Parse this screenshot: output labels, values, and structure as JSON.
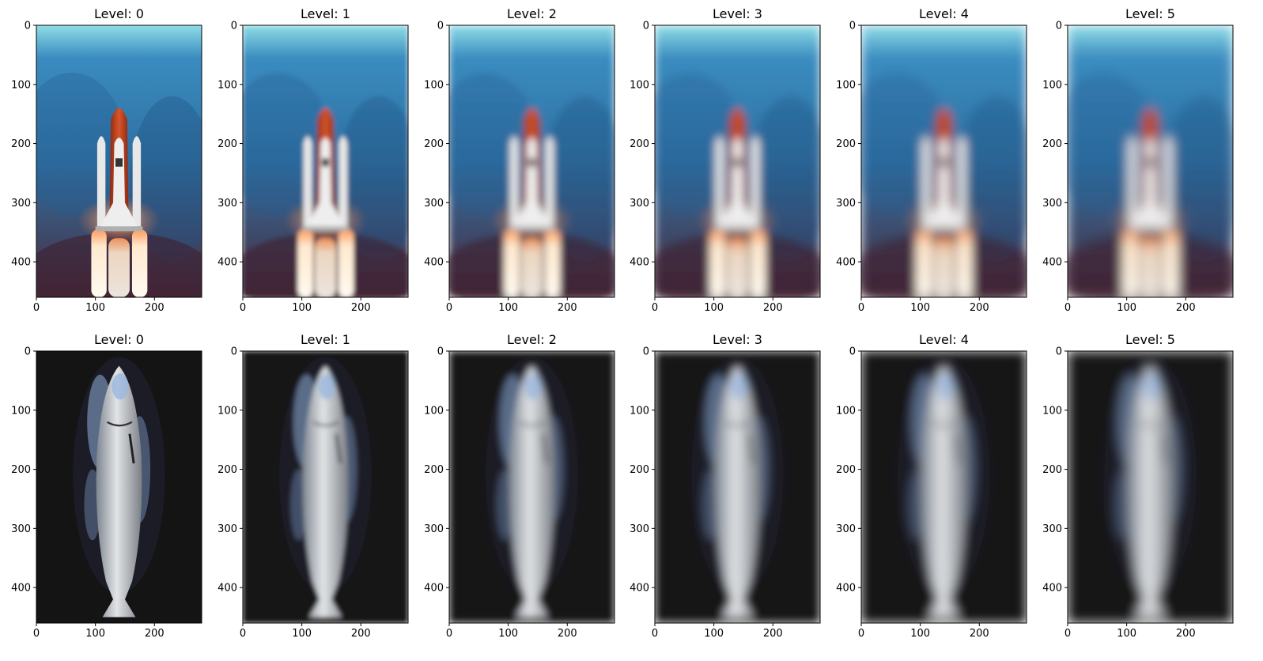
{
  "chart_data": {
    "type": "image-grid",
    "rows": [
      {
        "subject": "space shuttle launch",
        "panels": [
          {
            "title": "Level: 0",
            "blur_level": 0
          },
          {
            "title": "Level: 1",
            "blur_level": 1
          },
          {
            "title": "Level: 2",
            "blur_level": 2
          },
          {
            "title": "Level: 3",
            "blur_level": 3
          },
          {
            "title": "Level: 4",
            "blur_level": 4
          },
          {
            "title": "Level: 5",
            "blur_level": 5
          }
        ]
      },
      {
        "subject": "salmon fish on ice",
        "panels": [
          {
            "title": "Level: 0",
            "blur_level": 0
          },
          {
            "title": "Level: 1",
            "blur_level": 1
          },
          {
            "title": "Level: 2",
            "blur_level": 2
          },
          {
            "title": "Level: 3",
            "blur_level": 3
          },
          {
            "title": "Level: 4",
            "blur_level": 4
          },
          {
            "title": "Level: 5",
            "blur_level": 5
          }
        ]
      }
    ],
    "image_width": 280,
    "image_height": 460,
    "xlim": [
      0,
      280
    ],
    "ylim": [
      460,
      0
    ],
    "xticks": [
      0,
      100,
      200
    ],
    "yticks": [
      0,
      100,
      200,
      300,
      400
    ],
    "grid": false
  },
  "colors": {
    "sky_top": "#8fdde6",
    "sky_mid": "#2f6fa0",
    "sky_bottom": "#4a2a3c",
    "orange_tank": "#c8441e",
    "shuttle_white": "#e6e6e6",
    "flame": "#fff4e0",
    "fish_background": "#141414",
    "fish_body": "#c9c9c9",
    "ice": "#8eaed8"
  }
}
